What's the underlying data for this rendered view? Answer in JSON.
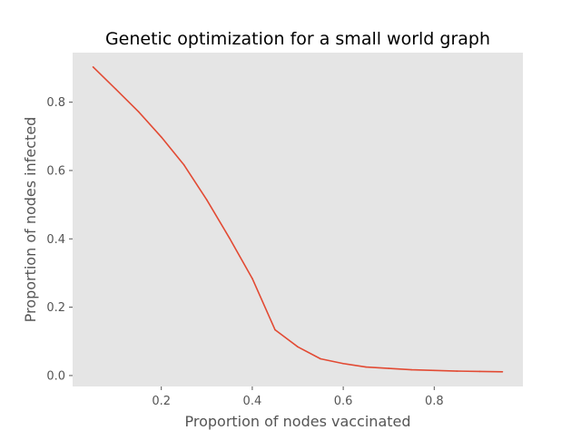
{
  "chart_data": {
    "type": "line",
    "title": "Genetic optimization for a small world graph",
    "xlabel": "Proportion of nodes vaccinated",
    "ylabel": "Proportion of nodes infected",
    "xlim": [
      0.005,
      0.995
    ],
    "ylim": [
      -0.032,
      0.945
    ],
    "xticks": [
      0.2,
      0.4,
      0.6,
      0.8
    ],
    "xtick_labels": [
      "0.2",
      "0.4",
      "0.6",
      "0.8"
    ],
    "yticks": [
      0.0,
      0.2,
      0.4,
      0.6,
      0.8
    ],
    "ytick_labels": [
      "0.0",
      "0.2",
      "0.4",
      "0.6",
      "0.8"
    ],
    "grid": false,
    "background_color": "#e5e5e5",
    "series": [
      {
        "color": "#e24a33",
        "x": [
          0.05,
          0.1,
          0.15,
          0.2,
          0.25,
          0.3,
          0.35,
          0.4,
          0.45,
          0.5,
          0.55,
          0.6,
          0.65,
          0.7,
          0.75,
          0.8,
          0.85,
          0.9,
          0.95
        ],
        "y": [
          0.903,
          0.838,
          0.772,
          0.698,
          0.616,
          0.514,
          0.402,
          0.284,
          0.134,
          0.084,
          0.049,
          0.035,
          0.025,
          0.021,
          0.017,
          0.015,
          0.013,
          0.012,
          0.011
        ]
      }
    ]
  }
}
